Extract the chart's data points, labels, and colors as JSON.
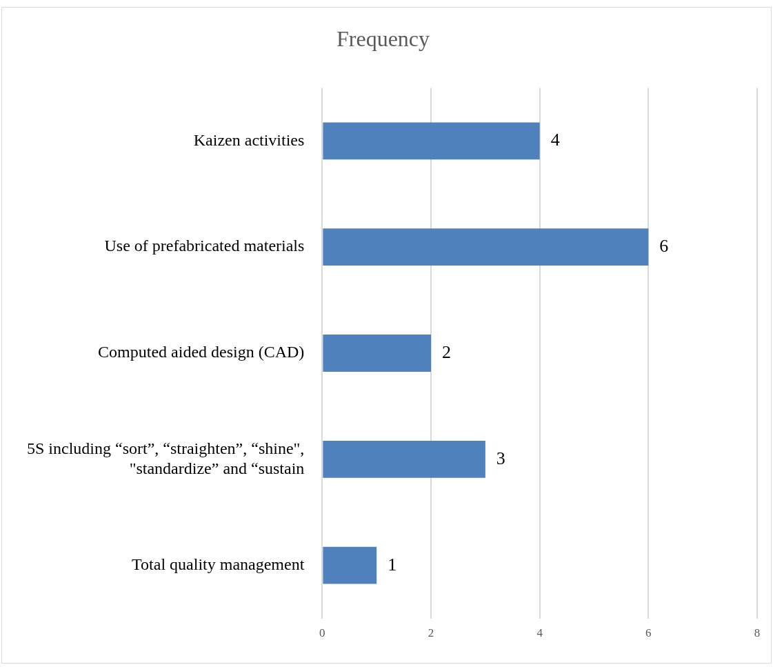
{
  "chart_data": {
    "type": "bar",
    "orientation": "horizontal",
    "title": "Frequency",
    "categories": [
      "Kaizen activities",
      "Use of prefabricated materials",
      "Computed aided design (CAD)",
      "5S including “sort”, “straighten”, “shine\", \"standardize” and “sustain",
      "Total quality management"
    ],
    "values": [
      4,
      6,
      2,
      3,
      1
    ],
    "color": "#4f81bd",
    "xlim": [
      0,
      8
    ],
    "xticks": [
      0,
      2,
      4,
      6,
      8
    ],
    "grid": "x",
    "legend": false,
    "data_labels": true
  }
}
